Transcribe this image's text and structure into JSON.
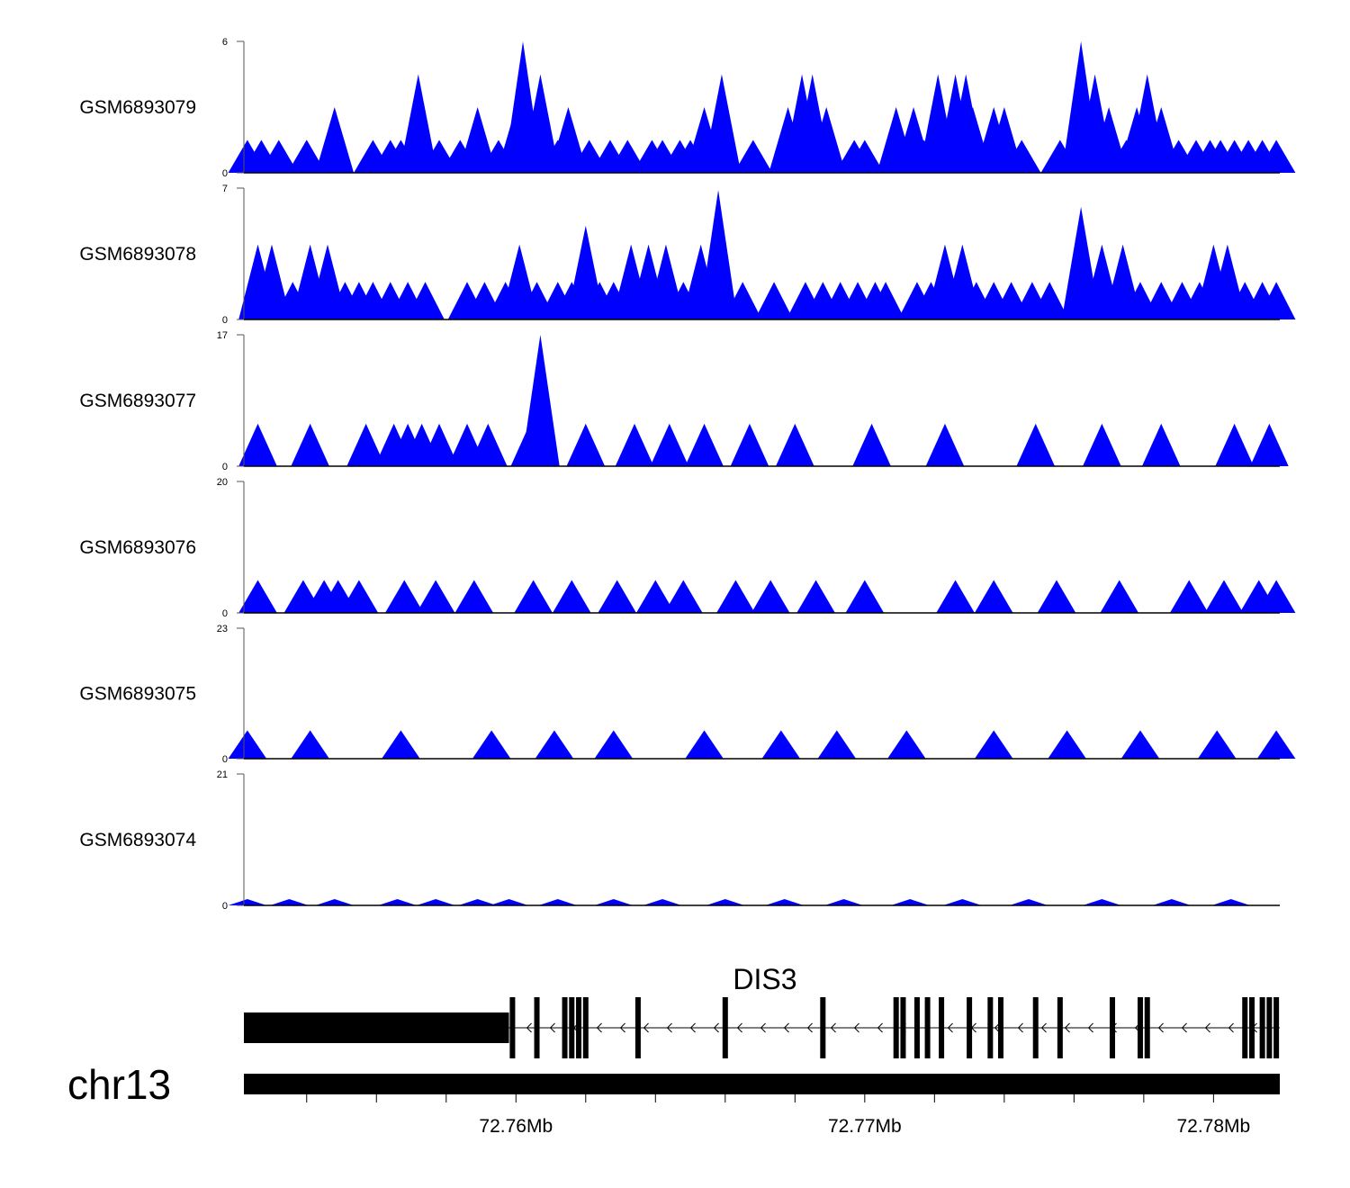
{
  "chart_data": {
    "type": "area",
    "xrange": [
      72.7522,
      72.7819
    ],
    "chromosome": "chr13",
    "gene": {
      "name": "DIS3",
      "strand": "-",
      "utr3_end": 72.7598,
      "exons": [
        72.7599,
        72.7606,
        72.7614,
        72.7616,
        72.7618,
        72.762,
        72.7635,
        72.766,
        72.7688,
        72.7709,
        72.7711,
        72.7715,
        72.7718,
        72.7722,
        72.773,
        72.7736,
        72.7739,
        72.7749,
        72.7756,
        72.7771,
        72.7779,
        72.7781,
        72.7809,
        72.7811,
        72.7814,
        72.7816,
        72.7818
      ]
    },
    "x_ticks": [
      72.754,
      72.756,
      72.758,
      72.76,
      72.762,
      72.764,
      72.766,
      72.768,
      72.77,
      72.772,
      72.774,
      72.776,
      72.778,
      72.78
    ],
    "x_tick_labels": [
      {
        "value": 72.76,
        "label": "72.76Mb"
      },
      {
        "value": 72.77,
        "label": "72.77Mb"
      },
      {
        "value": 72.78,
        "label": "72.78Mb"
      }
    ],
    "series": [
      {
        "name": "GSM6893079",
        "ylim": [
          0,
          6
        ],
        "y_tick_labels": [
          "0",
          "6"
        ],
        "color": "#0000ff",
        "peaks": [
          [
            72.7523,
            1.5
          ],
          [
            72.7527,
            1.5
          ],
          [
            72.7532,
            1.5
          ],
          [
            72.754,
            1.5
          ],
          [
            72.754,
            1.5
          ],
          [
            72.7548,
            3
          ],
          [
            72.7559,
            1.5
          ],
          [
            72.7564,
            1.5
          ],
          [
            72.7567,
            1.5
          ],
          [
            72.7572,
            4.5
          ],
          [
            72.7578,
            1.5
          ],
          [
            72.7584,
            1.5
          ],
          [
            72.7589,
            3
          ],
          [
            72.7595,
            1.5
          ],
          [
            72.76,
            3
          ],
          [
            72.7602,
            6
          ],
          [
            72.7607,
            4.5
          ],
          [
            72.7612,
            1.5
          ],
          [
            72.7615,
            3
          ],
          [
            72.7621,
            1.5
          ],
          [
            72.7627,
            1.5
          ],
          [
            72.7632,
            1.5
          ],
          [
            72.7639,
            1.5
          ],
          [
            72.7642,
            1.5
          ],
          [
            72.7647,
            1.5
          ],
          [
            72.765,
            1.5
          ],
          [
            72.7654,
            3
          ],
          [
            72.7659,
            4.5
          ],
          [
            72.7668,
            1.5
          ],
          [
            72.7678,
            3
          ],
          [
            72.7682,
            4.5
          ],
          [
            72.7685,
            4.5
          ],
          [
            72.7689,
            3
          ],
          [
            72.7697,
            1.5
          ],
          [
            72.77,
            1.5
          ],
          [
            72.7709,
            3
          ],
          [
            72.7714,
            3
          ],
          [
            72.7717,
            1.5
          ],
          [
            72.7721,
            4.5
          ],
          [
            72.7726,
            4.5
          ],
          [
            72.7729,
            4.5
          ],
          [
            72.7731,
            3
          ],
          [
            72.7733,
            1.5
          ],
          [
            72.7737,
            3
          ],
          [
            72.774,
            3
          ],
          [
            72.7745,
            1.5
          ],
          [
            72.7756,
            1.5
          ],
          [
            72.7762,
            6
          ],
          [
            72.7766,
            4.5
          ],
          [
            72.777,
            3
          ],
          [
            72.7775,
            1.5
          ],
          [
            72.7778,
            3
          ],
          [
            72.7781,
            4.5
          ],
          [
            72.7785,
            3
          ],
          [
            72.779,
            1.5
          ],
          [
            72.7795,
            1.5
          ],
          [
            72.7799,
            1.5
          ],
          [
            72.7802,
            1.5
          ],
          [
            72.7806,
            1.5
          ],
          [
            72.781,
            1.5
          ],
          [
            72.7814,
            1.5
          ],
          [
            72.7818,
            1.5
          ]
        ]
      },
      {
        "name": "GSM6893078",
        "ylim": [
          0,
          7
        ],
        "y_tick_labels": [
          "0",
          "7"
        ],
        "color": "#0000ff",
        "peaks": [
          [
            72.7526,
            4
          ],
          [
            72.753,
            4
          ],
          [
            72.7536,
            2
          ],
          [
            72.7541,
            4
          ],
          [
            72.7546,
            4
          ],
          [
            72.7551,
            2
          ],
          [
            72.7555,
            2
          ],
          [
            72.7559,
            2
          ],
          [
            72.7564,
            2
          ],
          [
            72.7569,
            2
          ],
          [
            72.7574,
            2
          ],
          [
            72.7586,
            2
          ],
          [
            72.7591,
            2
          ],
          [
            72.7597,
            2
          ],
          [
            72.7601,
            4
          ],
          [
            72.7606,
            2
          ],
          [
            72.7612,
            2
          ],
          [
            72.7616,
            2
          ],
          [
            72.762,
            5
          ],
          [
            72.7624,
            2
          ],
          [
            72.7628,
            2
          ],
          [
            72.7633,
            4
          ],
          [
            72.7638,
            4
          ],
          [
            72.7643,
            4
          ],
          [
            72.7648,
            2
          ],
          [
            72.7653,
            4
          ],
          [
            72.7658,
            6.9
          ],
          [
            72.7665,
            2
          ],
          [
            72.7674,
            2
          ],
          [
            72.7683,
            2
          ],
          [
            72.7688,
            2
          ],
          [
            72.7693,
            2
          ],
          [
            72.7698,
            2
          ],
          [
            72.7703,
            2
          ],
          [
            72.7706,
            2
          ],
          [
            72.7715,
            2
          ],
          [
            72.7719,
            2
          ],
          [
            72.7723,
            4
          ],
          [
            72.7728,
            4
          ],
          [
            72.7732,
            2
          ],
          [
            72.7737,
            2
          ],
          [
            72.7742,
            2
          ],
          [
            72.7748,
            2
          ],
          [
            72.7753,
            2
          ],
          [
            72.7762,
            6
          ],
          [
            72.7768,
            4
          ],
          [
            72.7774,
            4
          ],
          [
            72.7779,
            2
          ],
          [
            72.7785,
            2
          ],
          [
            72.7791,
            2
          ],
          [
            72.7796,
            2
          ],
          [
            72.78,
            4
          ],
          [
            72.7804,
            4
          ],
          [
            72.7809,
            2
          ],
          [
            72.7814,
            2
          ],
          [
            72.7818,
            2
          ]
        ]
      },
      {
        "name": "GSM6893077",
        "ylim": [
          0,
          17
        ],
        "y_tick_labels": [
          "0",
          "17"
        ],
        "color": "#0000ff",
        "peaks": [
          [
            72.7526,
            5.5
          ],
          [
            72.7541,
            5.5
          ],
          [
            72.7557,
            5.5
          ],
          [
            72.7565,
            5.5
          ],
          [
            72.7569,
            5.5
          ],
          [
            72.7573,
            5.5
          ],
          [
            72.7578,
            5.5
          ],
          [
            72.7586,
            5.5
          ],
          [
            72.7592,
            5.5
          ],
          [
            72.7604,
            5.5
          ],
          [
            72.7607,
            17
          ],
          [
            72.762,
            5.5
          ],
          [
            72.7634,
            5.5
          ],
          [
            72.7644,
            5.5
          ],
          [
            72.7654,
            5.5
          ],
          [
            72.7667,
            5.5
          ],
          [
            72.768,
            5.5
          ],
          [
            72.7702,
            5.5
          ],
          [
            72.7723,
            5.5
          ],
          [
            72.7749,
            5.5
          ],
          [
            72.7768,
            5.5
          ],
          [
            72.7785,
            5.5
          ],
          [
            72.7806,
            5.5
          ],
          [
            72.7816,
            5.5
          ]
        ]
      },
      {
        "name": "GSM6893076",
        "ylim": [
          0,
          20
        ],
        "y_tick_labels": [
          "0",
          "20"
        ],
        "color": "#0000ff",
        "peaks": [
          [
            72.7526,
            5
          ],
          [
            72.7539,
            5
          ],
          [
            72.7545,
            5
          ],
          [
            72.7549,
            5
          ],
          [
            72.7555,
            5
          ],
          [
            72.7568,
            5
          ],
          [
            72.7577,
            5
          ],
          [
            72.7588,
            5
          ],
          [
            72.7605,
            5
          ],
          [
            72.7616,
            5
          ],
          [
            72.7629,
            5
          ],
          [
            72.764,
            5
          ],
          [
            72.7648,
            5
          ],
          [
            72.7663,
            5
          ],
          [
            72.7673,
            5
          ],
          [
            72.7686,
            5
          ],
          [
            72.77,
            5
          ],
          [
            72.7726,
            5
          ],
          [
            72.7737,
            5
          ],
          [
            72.7755,
            5
          ],
          [
            72.7773,
            5
          ],
          [
            72.7793,
            5
          ],
          [
            72.7803,
            5
          ],
          [
            72.7813,
            5
          ],
          [
            72.7818,
            5
          ]
        ]
      },
      {
        "name": "GSM6893075",
        "ylim": [
          0,
          23
        ],
        "y_tick_labels": [
          "0",
          "23"
        ],
        "color": "#0000ff",
        "peaks": [
          [
            72.7523,
            5
          ],
          [
            72.7541,
            5
          ],
          [
            72.7567,
            5
          ],
          [
            72.7593,
            5
          ],
          [
            72.7611,
            5
          ],
          [
            72.7628,
            5
          ],
          [
            72.7654,
            5
          ],
          [
            72.7676,
            5
          ],
          [
            72.7692,
            5
          ],
          [
            72.7712,
            5
          ],
          [
            72.7737,
            5
          ],
          [
            72.7758,
            5
          ],
          [
            72.7779,
            5
          ],
          [
            72.7801,
            5
          ],
          [
            72.7818,
            5
          ]
        ]
      },
      {
        "name": "GSM6893074",
        "ylim": [
          0,
          21
        ],
        "y_tick_labels": [
          "0",
          "21"
        ],
        "color": "#0000ff",
        "peaks": [
          [
            72.7523,
            1
          ],
          [
            72.7535,
            1
          ],
          [
            72.7548,
            1
          ],
          [
            72.7566,
            1
          ],
          [
            72.7577,
            1
          ],
          [
            72.7589,
            1
          ],
          [
            72.7598,
            1
          ],
          [
            72.7612,
            1
          ],
          [
            72.7628,
            1
          ],
          [
            72.7642,
            1
          ],
          [
            72.766,
            1
          ],
          [
            72.7677,
            1
          ],
          [
            72.7694,
            1
          ],
          [
            72.7713,
            1
          ],
          [
            72.7728,
            1
          ],
          [
            72.7747,
            1
          ],
          [
            72.7768,
            1
          ],
          [
            72.7788,
            1
          ],
          [
            72.7805,
            1
          ]
        ]
      }
    ]
  }
}
